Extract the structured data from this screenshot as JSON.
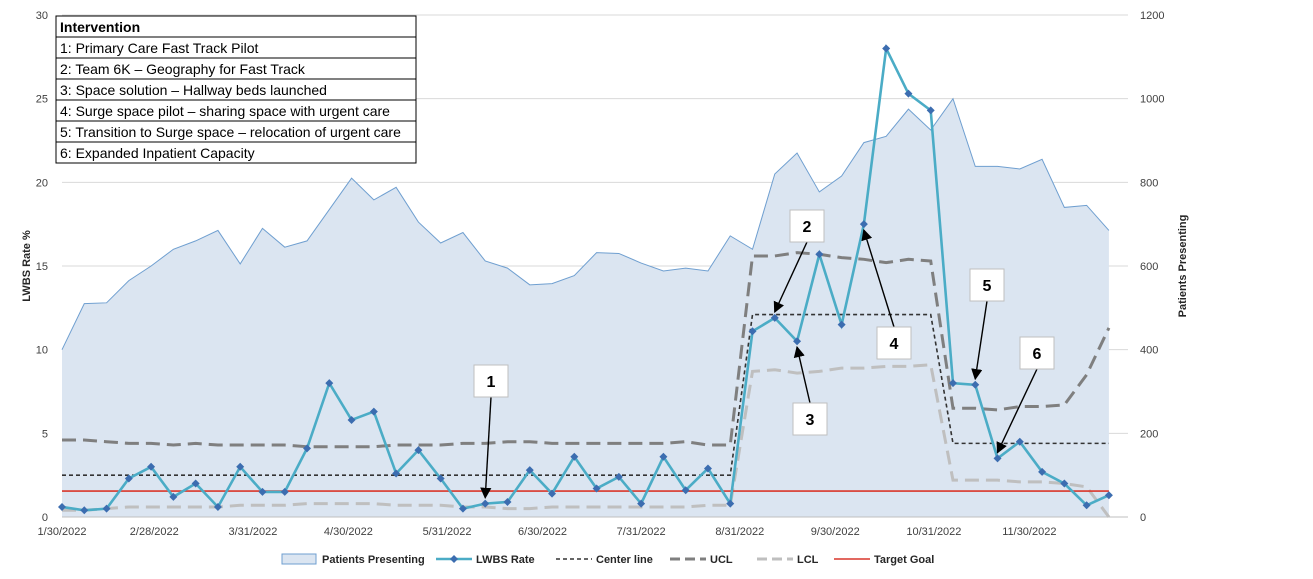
{
  "chart_data": {
    "type": "line",
    "ylabel_left": "LWBS Rate %",
    "ylabel_right": "Patients Presenting",
    "ylim_left": [
      0,
      30
    ],
    "ylim_right": [
      0,
      1200
    ],
    "left_ticks": [
      0,
      5,
      10,
      15,
      20,
      25,
      30
    ],
    "right_ticks": [
      0,
      200,
      400,
      600,
      800,
      1000,
      1200
    ],
    "x_range": [
      "2022-01-30",
      "2022-12-31"
    ],
    "x_ticks": [
      "1/30/2022",
      "2/28/2022",
      "3/31/2022",
      "4/30/2022",
      "5/31/2022",
      "6/30/2022",
      "7/31/2022",
      "8/31/2022",
      "9/30/2022",
      "10/31/2022",
      "11/30/2022"
    ],
    "x_tick_dates": [
      "2022-01-30",
      "2022-02-28",
      "2022-03-31",
      "2022-04-30",
      "2022-05-31",
      "2022-06-30",
      "2022-07-31",
      "2022-08-31",
      "2022-09-30",
      "2022-10-31",
      "2022-11-30"
    ],
    "grid": "horizontal",
    "legend_position": "bottom",
    "colors": {
      "patients_fill": "#dbe5f1",
      "patients_line": "#6f9fd0",
      "lwbs": "#4bacc6",
      "lwbs_marker": "#3c6db0",
      "center": "#333333",
      "ucl": "#7f7f7f",
      "lcl": "#bfbfbf",
      "target": "#d9372b"
    },
    "series": [
      {
        "name": "Patients Presenting",
        "axis": "right",
        "style": "area",
        "x": [
          "2022-01-30",
          "2022-02-06",
          "2022-02-13",
          "2022-02-20",
          "2022-02-27",
          "2022-03-06",
          "2022-03-13",
          "2022-03-20",
          "2022-03-27",
          "2022-04-03",
          "2022-04-10",
          "2022-04-17",
          "2022-04-24",
          "2022-05-01",
          "2022-05-08",
          "2022-05-15",
          "2022-05-22",
          "2022-05-29",
          "2022-06-05",
          "2022-06-12",
          "2022-06-19",
          "2022-06-26",
          "2022-07-03",
          "2022-07-10",
          "2022-07-17",
          "2022-07-24",
          "2022-07-31",
          "2022-08-07",
          "2022-08-14",
          "2022-08-21",
          "2022-08-28",
          "2022-09-04",
          "2022-09-11",
          "2022-09-18",
          "2022-09-25",
          "2022-10-02",
          "2022-10-09",
          "2022-10-16",
          "2022-10-23",
          "2022-10-30",
          "2022-11-06",
          "2022-11-13",
          "2022-11-20",
          "2022-11-27",
          "2022-12-04",
          "2022-12-11",
          "2022-12-18",
          "2022-12-25"
        ],
        "values": [
          400,
          510,
          512,
          565,
          600,
          640,
          660,
          685,
          605,
          690,
          645,
          660,
          735,
          810,
          758,
          788,
          705,
          655,
          680,
          612,
          595,
          555,
          558,
          577,
          632,
          630,
          607,
          588,
          595,
          588,
          672,
          640,
          820,
          870,
          777,
          815,
          895,
          910,
          975,
          925,
          1000,
          838,
          838,
          832,
          855,
          740,
          745,
          685
        ]
      },
      {
        "name": "LWBS Rate",
        "axis": "left",
        "style": "line-markers",
        "x": [
          "2022-01-30",
          "2022-02-06",
          "2022-02-13",
          "2022-02-20",
          "2022-02-27",
          "2022-03-06",
          "2022-03-13",
          "2022-03-20",
          "2022-03-27",
          "2022-04-03",
          "2022-04-10",
          "2022-04-17",
          "2022-04-24",
          "2022-05-01",
          "2022-05-08",
          "2022-05-15",
          "2022-05-22",
          "2022-05-29",
          "2022-06-05",
          "2022-06-12",
          "2022-06-19",
          "2022-06-26",
          "2022-07-03",
          "2022-07-10",
          "2022-07-17",
          "2022-07-24",
          "2022-07-31",
          "2022-08-07",
          "2022-08-14",
          "2022-08-21",
          "2022-08-28",
          "2022-09-04",
          "2022-09-11",
          "2022-09-18",
          "2022-09-25",
          "2022-10-02",
          "2022-10-09",
          "2022-10-16",
          "2022-10-23",
          "2022-10-30",
          "2022-11-06",
          "2022-11-13",
          "2022-11-20",
          "2022-11-27",
          "2022-12-04",
          "2022-12-11",
          "2022-12-18",
          "2022-12-25"
        ],
        "values": [
          0.6,
          0.4,
          0.5,
          2.3,
          3.0,
          1.2,
          2.0,
          0.6,
          3.0,
          1.5,
          1.5,
          4.1,
          8.0,
          5.8,
          6.3,
          2.6,
          4.0,
          2.3,
          0.5,
          0.8,
          0.9,
          2.8,
          1.4,
          3.6,
          1.7,
          2.4,
          0.8,
          3.6,
          1.6,
          2.9,
          0.8,
          11.1,
          11.9,
          10.5,
          15.7,
          11.5,
          17.5,
          28.0,
          25.3,
          24.3,
          8.0,
          7.9,
          3.5,
          4.5,
          2.7,
          2.0,
          0.7,
          1.3
        ]
      },
      {
        "name": "Center line",
        "axis": "left",
        "style": "dashed",
        "x": [
          "2022-01-30",
          "2022-08-28",
          "2022-09-04",
          "2022-10-30",
          "2022-11-06",
          "2022-12-25"
        ],
        "values": [
          2.5,
          2.5,
          12.1,
          12.1,
          4.4,
          4.4
        ]
      },
      {
        "name": "UCL",
        "axis": "left",
        "style": "long-dash",
        "x": [
          "2022-01-30",
          "2022-02-06",
          "2022-02-13",
          "2022-02-20",
          "2022-02-27",
          "2022-03-06",
          "2022-03-13",
          "2022-03-20",
          "2022-03-27",
          "2022-04-03",
          "2022-04-10",
          "2022-04-17",
          "2022-04-24",
          "2022-05-01",
          "2022-05-08",
          "2022-05-15",
          "2022-05-22",
          "2022-05-29",
          "2022-06-05",
          "2022-06-12",
          "2022-06-19",
          "2022-06-26",
          "2022-07-03",
          "2022-07-10",
          "2022-07-17",
          "2022-07-24",
          "2022-07-31",
          "2022-08-07",
          "2022-08-14",
          "2022-08-21",
          "2022-08-28",
          "2022-09-04",
          "2022-09-11",
          "2022-09-18",
          "2022-09-25",
          "2022-10-02",
          "2022-10-09",
          "2022-10-16",
          "2022-10-23",
          "2022-10-30",
          "2022-11-06",
          "2022-11-13",
          "2022-11-20",
          "2022-11-27",
          "2022-12-04",
          "2022-12-11",
          "2022-12-18",
          "2022-12-25"
        ],
        "values": [
          4.6,
          4.6,
          4.5,
          4.4,
          4.4,
          4.3,
          4.4,
          4.3,
          4.3,
          4.3,
          4.3,
          4.2,
          4.2,
          4.2,
          4.2,
          4.3,
          4.3,
          4.3,
          4.4,
          4.4,
          4.5,
          4.5,
          4.4,
          4.4,
          4.4,
          4.4,
          4.4,
          4.4,
          4.5,
          4.3,
          4.3,
          15.6,
          15.6,
          15.8,
          15.7,
          15.5,
          15.4,
          15.2,
          15.4,
          15.3,
          6.5,
          6.5,
          6.4,
          6.6,
          6.6,
          6.7,
          8.5,
          11.3
        ]
      },
      {
        "name": "LCL",
        "axis": "left",
        "style": "long-dash",
        "x": [
          "2022-01-30",
          "2022-02-06",
          "2022-02-13",
          "2022-02-20",
          "2022-02-27",
          "2022-03-06",
          "2022-03-13",
          "2022-03-20",
          "2022-03-27",
          "2022-04-03",
          "2022-04-10",
          "2022-04-17",
          "2022-04-24",
          "2022-05-01",
          "2022-05-08",
          "2022-05-15",
          "2022-05-22",
          "2022-05-29",
          "2022-06-05",
          "2022-06-12",
          "2022-06-19",
          "2022-06-26",
          "2022-07-03",
          "2022-07-10",
          "2022-07-17",
          "2022-07-24",
          "2022-07-31",
          "2022-08-07",
          "2022-08-14",
          "2022-08-21",
          "2022-08-28",
          "2022-09-04",
          "2022-09-11",
          "2022-09-18",
          "2022-09-25",
          "2022-10-02",
          "2022-10-09",
          "2022-10-16",
          "2022-10-23",
          "2022-10-30",
          "2022-11-06",
          "2022-11-13",
          "2022-11-20",
          "2022-11-27",
          "2022-12-04",
          "2022-12-11",
          "2022-12-18",
          "2022-12-25"
        ],
        "values": [
          0.4,
          0.4,
          0.5,
          0.6,
          0.6,
          0.6,
          0.6,
          0.6,
          0.7,
          0.7,
          0.7,
          0.8,
          0.8,
          0.8,
          0.8,
          0.7,
          0.7,
          0.7,
          0.6,
          0.6,
          0.5,
          0.5,
          0.6,
          0.6,
          0.6,
          0.6,
          0.6,
          0.6,
          0.6,
          0.7,
          0.7,
          8.7,
          8.8,
          8.6,
          8.7,
          8.9,
          8.9,
          9.0,
          9.0,
          9.1,
          2.2,
          2.2,
          2.2,
          2.1,
          2.1,
          2.0,
          1.8,
          0.0
        ]
      },
      {
        "name": "Target Goal",
        "axis": "left",
        "style": "solid",
        "x": [
          "2022-01-30",
          "2022-12-25"
        ],
        "values": [
          1.55,
          1.55
        ]
      }
    ],
    "legend": [
      "Patients Presenting",
      "LWBS Rate",
      "Center line",
      "UCL",
      "LCL",
      "Target Goal"
    ],
    "intervention_table": {
      "title": "Intervention",
      "rows": [
        "1: Primary Care Fast Track Pilot",
        "2: Team 6K – Geography for Fast Track",
        "3: Space solution – Hallway beds launched",
        "4: Surge space pilot – sharing space with urgent care",
        "5: Transition to Surge space – relocation of urgent care",
        "6: Expanded Inpatient Capacity"
      ]
    },
    "annotations": [
      {
        "label": "1",
        "point_index": 19
      },
      {
        "label": "2",
        "point_index": 32
      },
      {
        "label": "3",
        "point_index": 33
      },
      {
        "label": "4",
        "point_index": 36
      },
      {
        "label": "5",
        "point_index": 41
      },
      {
        "label": "6",
        "point_index": 42
      }
    ]
  }
}
